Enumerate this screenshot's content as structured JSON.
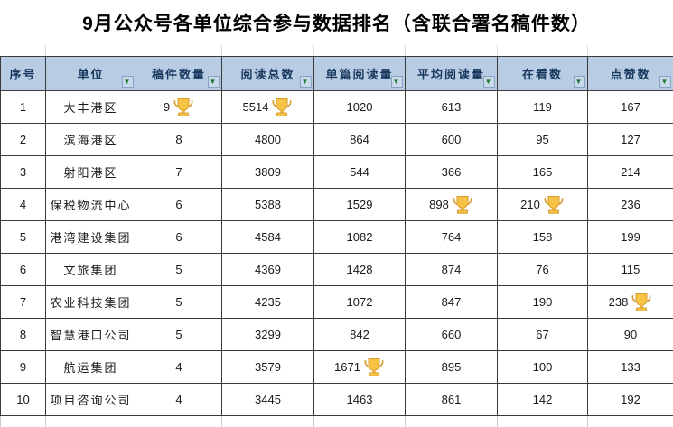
{
  "title": "9月公众号各单位综合参与数据排名（含联合署名稿件数）",
  "filter_arrow": "▼",
  "columns": [
    {
      "key": "rank",
      "label": "序号",
      "filter": false
    },
    {
      "key": "unit",
      "label": "单位",
      "filter": true
    },
    {
      "key": "article-count",
      "label": "稿件数量",
      "filter": true
    },
    {
      "key": "total-reads",
      "label": "阅读总数",
      "filter": true
    },
    {
      "key": "per-article-reads",
      "label": "单篇阅读量",
      "filter": true
    },
    {
      "key": "avg-reads",
      "label": "平均阅读量",
      "filter": true
    },
    {
      "key": "watch-count",
      "label": "在看数",
      "filter": true
    },
    {
      "key": "like-count",
      "label": "点赞数",
      "filter": true
    }
  ],
  "rows": [
    {
      "cells": [
        "1",
        "大丰港区",
        "9",
        "5514",
        "1020",
        "613",
        "119",
        "167"
      ],
      "trophies": [
        2,
        3
      ]
    },
    {
      "cells": [
        "2",
        "滨海港区",
        "8",
        "4800",
        "864",
        "600",
        "95",
        "127"
      ],
      "trophies": []
    },
    {
      "cells": [
        "3",
        "射阳港区",
        "7",
        "3809",
        "544",
        "366",
        "165",
        "214"
      ],
      "trophies": []
    },
    {
      "cells": [
        "4",
        "保税物流中心",
        "6",
        "5388",
        "1529",
        "898",
        "210",
        "236"
      ],
      "trophies": [
        5,
        6
      ]
    },
    {
      "cells": [
        "5",
        "港湾建设集团",
        "6",
        "4584",
        "1082",
        "764",
        "158",
        "199"
      ],
      "trophies": []
    },
    {
      "cells": [
        "6",
        "文旅集团",
        "5",
        "4369",
        "1428",
        "874",
        "76",
        "115"
      ],
      "trophies": []
    },
    {
      "cells": [
        "7",
        "农业科技集团",
        "5",
        "4235",
        "1072",
        "847",
        "190",
        "238"
      ],
      "trophies": [
        7
      ]
    },
    {
      "cells": [
        "8",
        "智慧港口公司",
        "5",
        "3299",
        "842",
        "660",
        "67",
        "90"
      ],
      "trophies": []
    },
    {
      "cells": [
        "9",
        "航运集团",
        "4",
        "3579",
        "1671",
        "895",
        "100",
        "133"
      ],
      "trophies": [
        4
      ]
    },
    {
      "cells": [
        "10",
        "项目咨询公司",
        "4",
        "3445",
        "1463",
        "861",
        "142",
        "192"
      ],
      "trophies": []
    }
  ],
  "icons": {
    "trophy": "trophy-icon",
    "filter": "chevron-down-icon"
  },
  "colors": {
    "header_bg": "#B8CCE4",
    "header_text": "#17375E",
    "grid_border": "#3A3A3A",
    "trophy_gold": "#F6C344",
    "trophy_outline": "#D79B2F",
    "filter_arrow_green": "#1E7B34"
  }
}
